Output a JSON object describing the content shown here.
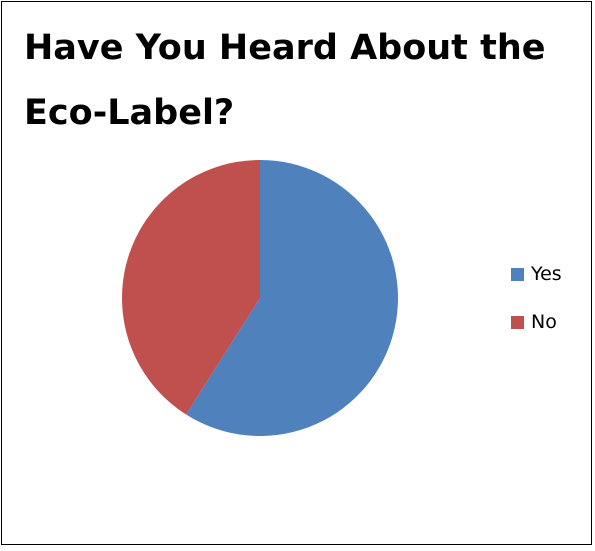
{
  "chart_data": {
    "type": "pie",
    "title_lines": [
      "Have You Heard About the",
      "Eco-Label?"
    ],
    "categories": [
      "Yes",
      "No"
    ],
    "values": [
      59,
      41
    ],
    "colors": [
      "#4F81BD",
      "#C0504D"
    ],
    "legend_position": "right"
  }
}
